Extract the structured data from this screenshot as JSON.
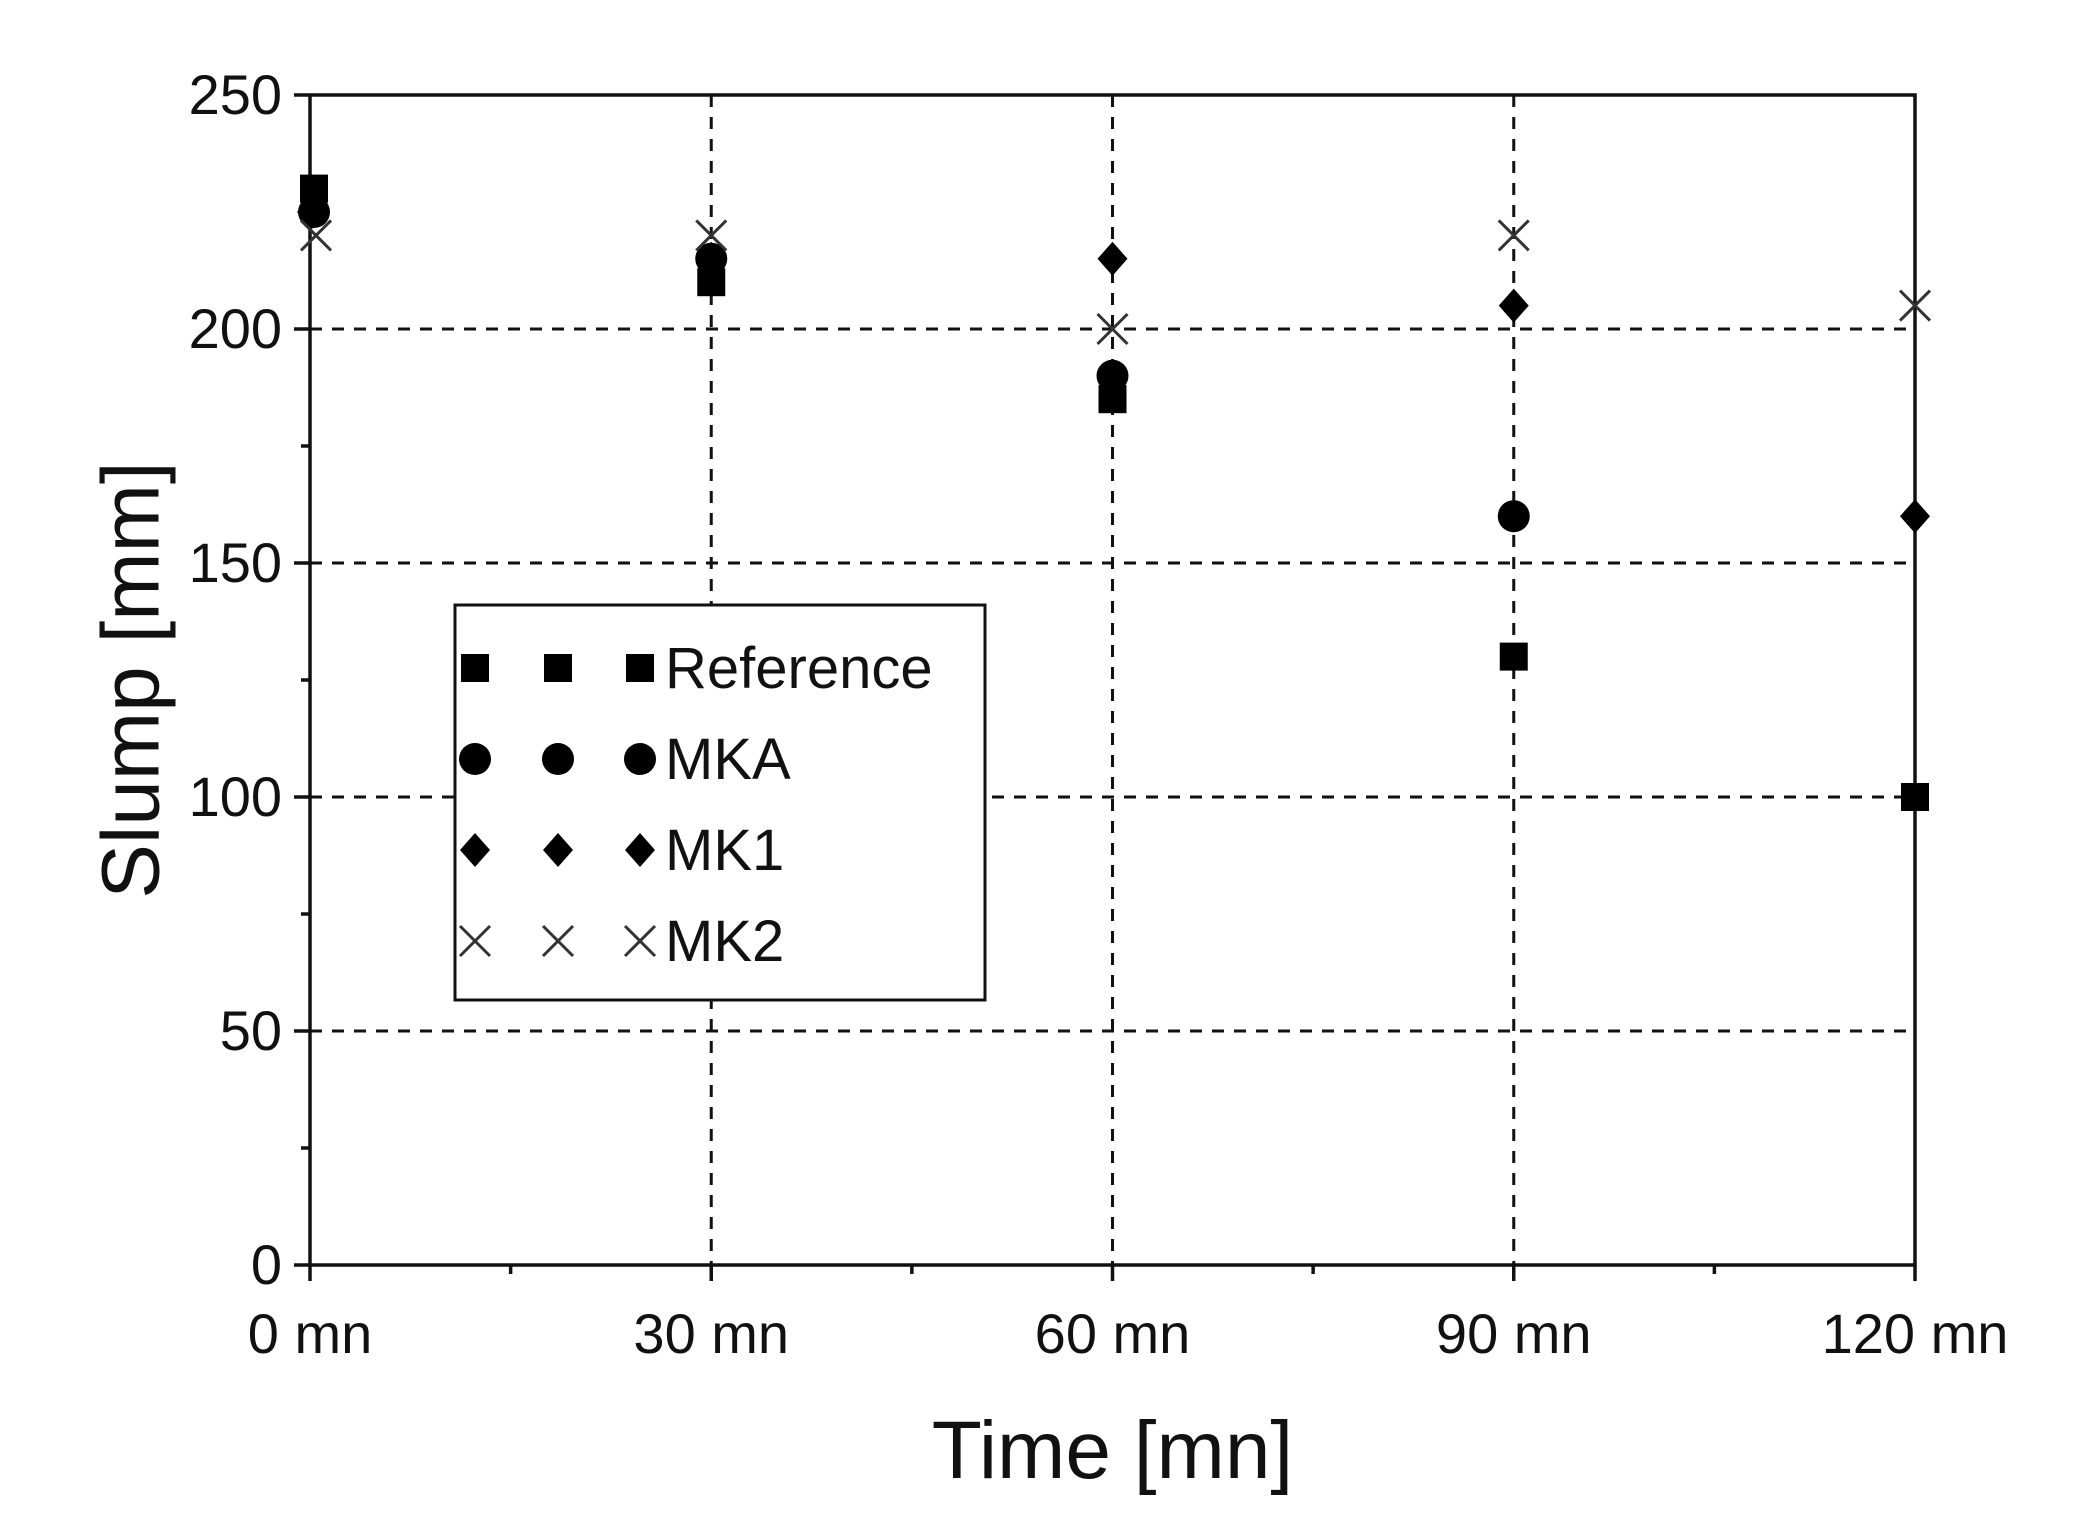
{
  "chart_data": {
    "type": "scatter",
    "title": "",
    "xlabel": "Time [mn]",
    "ylabel": "Slump [mm]",
    "x": [
      0,
      30,
      60,
      90,
      120
    ],
    "x_tick_labels": [
      "0 mn",
      "30 mn",
      "60 mn",
      "90 mn",
      "120 mn"
    ],
    "xlim": [
      0,
      120
    ],
    "ylim": [
      0,
      250
    ],
    "y_ticks": [
      0,
      50,
      100,
      150,
      200,
      250
    ],
    "grid": true,
    "legend_position": "center-left",
    "series": [
      {
        "name": "Reference",
        "marker": "square",
        "values": [
          230,
          210,
          185,
          130,
          100
        ]
      },
      {
        "name": "MKA",
        "marker": "circle",
        "values": [
          225,
          215,
          190,
          160,
          null
        ]
      },
      {
        "name": "MK1",
        "marker": "diamond",
        "values": [
          225,
          215,
          215,
          205,
          160
        ]
      },
      {
        "name": "MK2",
        "marker": "cross",
        "values": [
          220,
          220,
          200,
          220,
          205
        ]
      }
    ],
    "colors": {
      "marker": "#000000",
      "cross": "#333333"
    }
  }
}
